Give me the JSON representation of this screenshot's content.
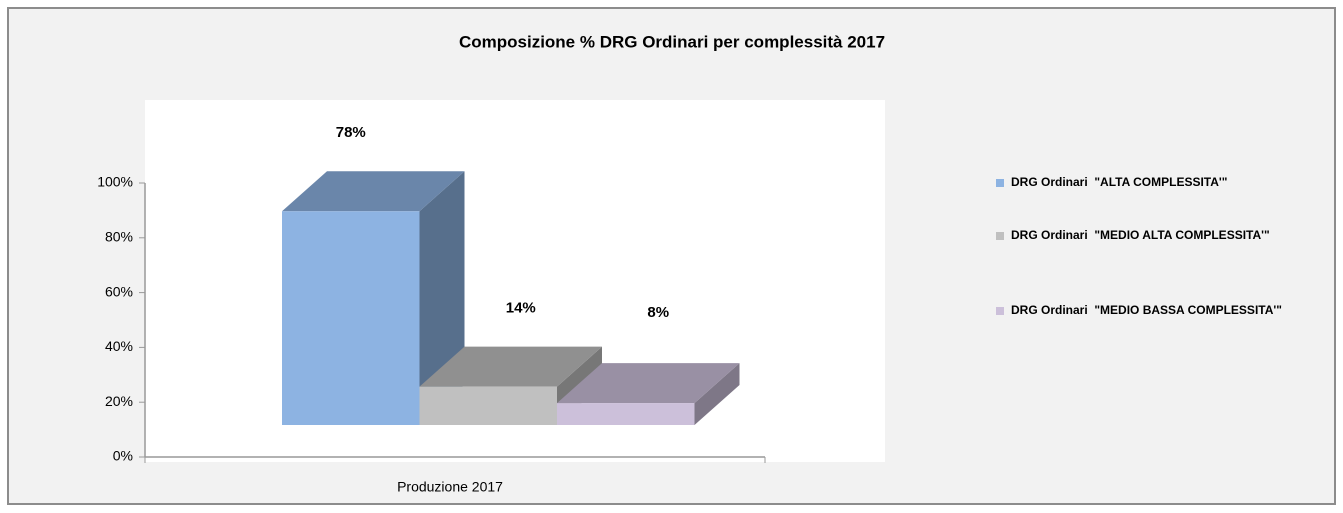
{
  "chart_data": {
    "type": "bar3d",
    "title": "Composizione % DRG Ordinari per complessità 2017",
    "categories": [
      "Produzione 2017"
    ],
    "series": [
      {
        "name": "DRG Ordinari  \"ALTA COMPLESSITA'\"",
        "color": "#8db3e2",
        "values": [
          78
        ],
        "value_labels": [
          "78%"
        ]
      },
      {
        "name": "DRG Ordinari  \"MEDIO ALTA COMPLESSITA'\"",
        "color": "#c0c0c0",
        "values": [
          14
        ],
        "value_labels": [
          "14%"
        ]
      },
      {
        "name": "DRG Ordinari  \"MEDIO BASSA COMPLESSITA'\"",
        "color": "#ccc0da",
        "values": [
          8
        ],
        "value_labels": [
          "8%"
        ]
      }
    ],
    "ylim": [
      0,
      100
    ],
    "yticks": [
      {
        "value": 0,
        "label": "0%"
      },
      {
        "value": 20,
        "label": "20%"
      },
      {
        "value": 40,
        "label": "40%"
      },
      {
        "value": 60,
        "label": "60%"
      },
      {
        "value": 80,
        "label": "80%"
      },
      {
        "value": 100,
        "label": "100%"
      }
    ],
    "legend": "right"
  }
}
